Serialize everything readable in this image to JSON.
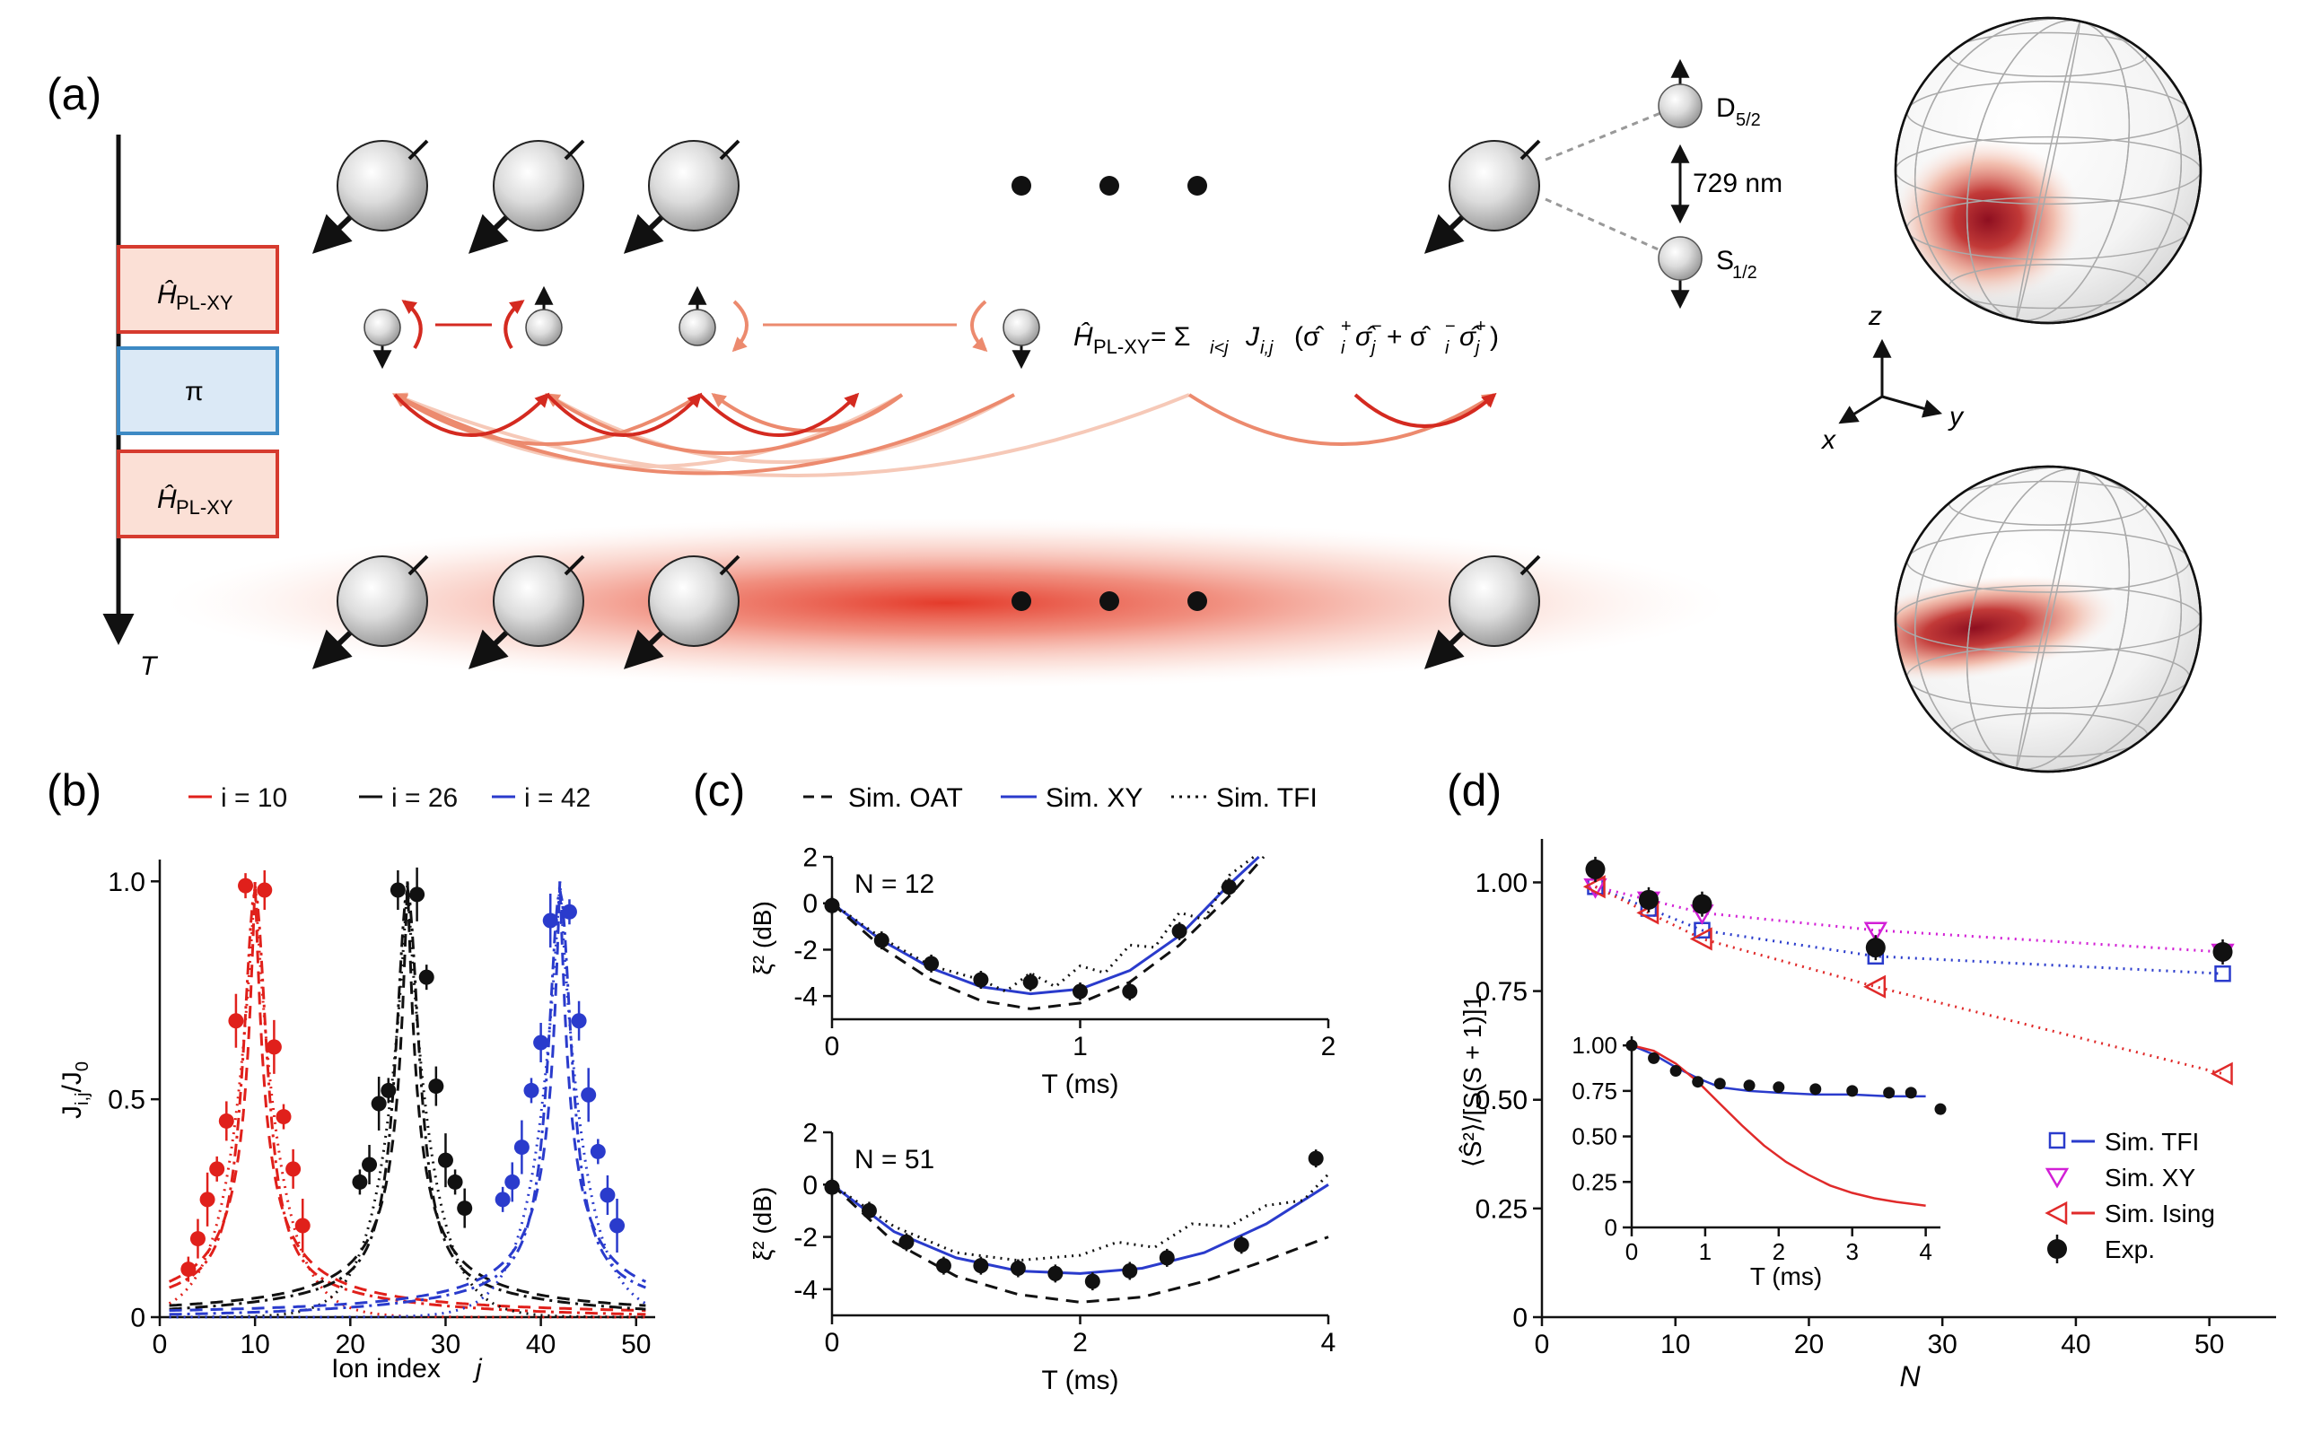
{
  "panel_a": {
    "label": "(a)",
    "time_axis": "T",
    "pulse_labels": [
      "Ĥ",
      "PL-XY",
      "π"
    ],
    "levels": {
      "upper": "D",
      "upper_sub": "5/2",
      "lower": "S",
      "lower_sub": "1/2",
      "wavelength": "729 nm"
    },
    "hamiltonian": {
      "lhs": "Ĥ",
      "lhs_sub": "PL-XY",
      "eq": "= Σ",
      "sum_sub": "i<j",
      "j": "J",
      "j_sub": "i,j",
      "rest": "(σ̂",
      "p1": "+",
      "m1": "−",
      "mid": " + σ̂",
      "m2": "−",
      "p2": "+",
      "close": ")",
      "i": "i",
      "jj": "j"
    },
    "axes3d": {
      "z": "z",
      "y": "y",
      "x": "x"
    },
    "colors": {
      "pulse_red_fill": "#fbe0d6",
      "pulse_red_stroke": "#d63b2f",
      "pi_fill": "#dbe9f6",
      "pi_stroke": "#3d8ac4",
      "red": "#d42a20"
    }
  },
  "panel_b": {
    "label": "(b)"
  },
  "panel_c": {
    "label": "(c)"
  },
  "panel_d": {
    "label": "(d)"
  },
  "chart_data": [
    {
      "id": "b",
      "type": "scatter",
      "xlabel": "Ion index j",
      "ylabel": "J_i,j / J_0",
      "xlim": [
        0,
        52
      ],
      "ylim": [
        0,
        1.05
      ],
      "xticks": [
        0,
        10,
        20,
        30,
        40,
        50
      ],
      "yticks": [
        0,
        0.5,
        1.0
      ],
      "ytick_labels": [
        "0",
        "0.5",
        "1.0"
      ],
      "legend": [
        "i = 10",
        "i = 26",
        "i = 42"
      ],
      "series": [
        {
          "name": "i = 10",
          "color": "#e0201b",
          "center": 10,
          "x": [
            3,
            4,
            5,
            6,
            7,
            8,
            9,
            11,
            12,
            13,
            14,
            15
          ],
          "y": [
            0.11,
            0.18,
            0.27,
            0.34,
            0.45,
            0.68,
            0.99,
            0.98,
            0.62,
            0.46,
            0.34,
            0.21
          ]
        },
        {
          "name": "i = 26",
          "color": "#111111",
          "center": 26,
          "x": [
            21,
            22,
            23,
            24,
            25,
            27,
            28,
            29,
            30,
            31,
            32
          ],
          "y": [
            0.31,
            0.35,
            0.49,
            0.52,
            0.98,
            0.97,
            0.78,
            0.53,
            0.36,
            0.31,
            0.25
          ]
        },
        {
          "name": "i = 42",
          "color": "#2a3bcc",
          "center": 42,
          "x": [
            36,
            37,
            38,
            39,
            40,
            41,
            43,
            44,
            45,
            46,
            47,
            48
          ],
          "y": [
            0.27,
            0.31,
            0.39,
            0.52,
            0.63,
            0.91,
            0.93,
            0.68,
            0.51,
            0.38,
            0.28,
            0.21
          ]
        }
      ]
    },
    {
      "id": "c_top",
      "type": "line",
      "annotation": "N = 12",
      "xlabel": "T (ms)",
      "ylabel": "ξ² (dB)",
      "xlim": [
        0,
        2
      ],
      "ylim": [
        -5,
        2
      ],
      "xticks": [
        0,
        1,
        2
      ],
      "yticks": [
        -4,
        -2,
        0,
        2
      ],
      "legend": [
        "Sim. OAT",
        "Sim. XY",
        "Sim. TFI"
      ],
      "series": [
        {
          "name": "Sim. XY",
          "color": "#2a3bcc",
          "x": [
            0,
            0.2,
            0.4,
            0.6,
            0.8,
            1.0,
            1.2,
            1.4,
            1.6,
            1.72
          ],
          "y": [
            0,
            -1.6,
            -2.8,
            -3.6,
            -3.9,
            -3.7,
            -2.9,
            -1.4,
            0.8,
            2.0
          ]
        },
        {
          "name": "Sim. OAT",
          "color": "#111111",
          "x": [
            0,
            0.2,
            0.4,
            0.6,
            0.8,
            1.0,
            1.2,
            1.4,
            1.6,
            1.74
          ],
          "y": [
            0,
            -1.9,
            -3.3,
            -4.2,
            -4.55,
            -4.3,
            -3.4,
            -1.8,
            0.3,
            2.0
          ]
        },
        {
          "name": "Sim. TFI",
          "color": "#111111",
          "x": [
            0,
            0.2,
            0.4,
            0.6,
            0.7,
            0.8,
            0.9,
            1.0,
            1.1,
            1.2,
            1.3,
            1.4,
            1.5,
            1.6,
            1.7
          ],
          "y": [
            0,
            -1.5,
            -2.7,
            -3.3,
            -3.8,
            -3.0,
            -3.6,
            -2.7,
            -3.0,
            -1.8,
            -1.9,
            -0.4,
            -0.7,
            1.2,
            2.0
          ]
        },
        {
          "name": "Exp.",
          "color": "#111111",
          "x": [
            0,
            0.2,
            0.4,
            0.6,
            0.8,
            1.0,
            1.2,
            1.4,
            1.6
          ],
          "y": [
            -0.1,
            -1.6,
            -2.6,
            -3.3,
            -3.4,
            -3.8,
            -3.8,
            -1.2,
            0.7
          ]
        }
      ]
    },
    {
      "id": "c_bottom",
      "type": "line",
      "annotation": "N = 51",
      "xlabel": "T (ms)",
      "ylabel": "ξ² (dB)",
      "xlim": [
        0,
        4
      ],
      "ylim": [
        -5,
        2
      ],
      "xticks": [
        0,
        2,
        4
      ],
      "yticks": [
        -4,
        -2,
        0,
        2
      ],
      "series": [
        {
          "name": "Sim. XY",
          "color": "#2a3bcc",
          "x": [
            0,
            0.5,
            1,
            1.5,
            2,
            2.5,
            3,
            3.5,
            4
          ],
          "y": [
            0,
            -1.8,
            -2.8,
            -3.3,
            -3.4,
            -3.2,
            -2.6,
            -1.5,
            0.0
          ]
        },
        {
          "name": "Sim. OAT",
          "color": "#111111",
          "x": [
            0,
            0.5,
            1,
            1.5,
            2,
            2.5,
            3,
            3.5,
            4
          ],
          "y": [
            0,
            -2.2,
            -3.5,
            -4.2,
            -4.5,
            -4.3,
            -3.7,
            -2.9,
            -2.0
          ]
        },
        {
          "name": "Sim. TFI",
          "color": "#111111",
          "x": [
            0,
            0.5,
            1,
            1.5,
            2,
            2.3,
            2.6,
            2.9,
            3.2,
            3.5,
            3.8,
            4
          ],
          "y": [
            0,
            -1.6,
            -2.6,
            -2.9,
            -2.7,
            -2.2,
            -2.4,
            -1.5,
            -1.6,
            -0.8,
            -0.6,
            0.4
          ]
        },
        {
          "name": "Exp.",
          "color": "#111111",
          "x": [
            0,
            0.3,
            0.6,
            0.9,
            1.2,
            1.5,
            1.8,
            2.1,
            2.4,
            2.7,
            3.3,
            3.9
          ],
          "y": [
            -0.1,
            -1.0,
            -2.2,
            -3.1,
            -3.1,
            -3.2,
            -3.4,
            -3.7,
            -3.3,
            -2.8,
            -2.3,
            1.0
          ]
        }
      ]
    },
    {
      "id": "d",
      "type": "scatter",
      "xlabel": "N",
      "ylabel": "⟨Ŝ²⟩/[S(S + 1)]1",
      "xlim": [
        0,
        55
      ],
      "ylim": [
        0,
        1.1
      ],
      "xticks": [
        0,
        10,
        20,
        30,
        40,
        50
      ],
      "yticks": [
        0,
        0.25,
        0.5,
        0.75,
        1.0
      ],
      "ytick_labels": [
        "0",
        "0.25",
        "0.50",
        "0.75",
        "1.00"
      ],
      "legend": [
        "Sim. TFI",
        "Sim. XY",
        "Sim. Ising",
        "Exp."
      ],
      "series": [
        {
          "name": "Sim. TFI",
          "color": "#2a3bcc",
          "marker": "square",
          "x": [
            4,
            8,
            12,
            25,
            51
          ],
          "y": [
            0.99,
            0.94,
            0.89,
            0.83,
            0.79
          ]
        },
        {
          "name": "Sim. XY",
          "color": "#d21fd6",
          "marker": "triangle-down",
          "x": [
            4,
            8,
            12,
            25,
            51
          ],
          "y": [
            0.99,
            0.96,
            0.93,
            0.89,
            0.84
          ]
        },
        {
          "name": "Sim. Ising",
          "color": "#e02a2a",
          "marker": "triangle-left",
          "x": [
            4,
            8,
            12,
            25,
            51
          ],
          "y": [
            0.99,
            0.93,
            0.87,
            0.76,
            0.56
          ]
        },
        {
          "name": "Exp.",
          "color": "#111111",
          "marker": "circle",
          "x": [
            4,
            8,
            12,
            25,
            51
          ],
          "y": [
            1.03,
            0.96,
            0.95,
            0.85,
            0.84
          ]
        }
      ],
      "inset": {
        "xlabel": "T (ms)",
        "xlim": [
          0,
          4.2
        ],
        "ylim": [
          0,
          1.05
        ],
        "xticks": [
          0,
          1,
          2,
          3,
          4
        ],
        "yticks": [
          0,
          0.25,
          0.5,
          0.75,
          1.0
        ],
        "ytick_labels": [
          "0",
          "0.25",
          "0.50",
          "0.75",
          "1.00"
        ],
        "series": [
          {
            "name": "Sim. TFI",
            "color": "#2a3bcc",
            "x": [
              0,
              0.3,
              0.6,
              0.9,
              1.2,
              1.6,
              2.0,
              2.5,
              3.0,
              3.5,
              4.0
            ],
            "y": [
              1.0,
              0.95,
              0.88,
              0.82,
              0.77,
              0.75,
              0.74,
              0.73,
              0.73,
              0.72,
              0.72
            ]
          },
          {
            "name": "Sim. Ising",
            "color": "#e02a2a",
            "x": [
              0,
              0.3,
              0.6,
              0.9,
              1.2,
              1.5,
              1.8,
              2.1,
              2.4,
              2.7,
              3.0,
              3.3,
              3.6,
              4.0
            ],
            "y": [
              1.0,
              0.97,
              0.9,
              0.8,
              0.68,
              0.56,
              0.45,
              0.36,
              0.29,
              0.23,
              0.19,
              0.16,
              0.14,
              0.12
            ]
          },
          {
            "name": "Exp.",
            "color": "#111111",
            "x": [
              0,
              0.3,
              0.6,
              0.9,
              1.2,
              1.6,
              2.0,
              2.5,
              3.0,
              3.5,
              3.8,
              4.2
            ],
            "y": [
              1.0,
              0.93,
              0.86,
              0.8,
              0.79,
              0.78,
              0.77,
              0.76,
              0.75,
              0.74,
              0.74,
              0.65
            ]
          }
        ]
      }
    }
  ]
}
